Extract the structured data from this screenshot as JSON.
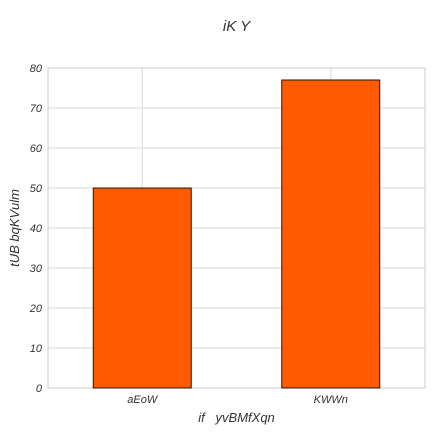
{
  "chart_data": {
    "type": "bar",
    "title": "iK Y",
    "xlabel": "if   yvBMfXqn",
    "ylabel": "tUB bqKVulm",
    "categories": [
      "aEoW",
      "KWWn"
    ],
    "values": [
      50,
      77
    ],
    "ylim": [
      0,
      80
    ],
    "yticks": [
      0,
      10,
      20,
      30,
      40,
      50,
      60,
      70,
      80
    ],
    "grid": true,
    "bar_color": "#ff5a00",
    "bar_edge_color": "#1a1a1a",
    "grid_color": "#d9d9d9"
  }
}
